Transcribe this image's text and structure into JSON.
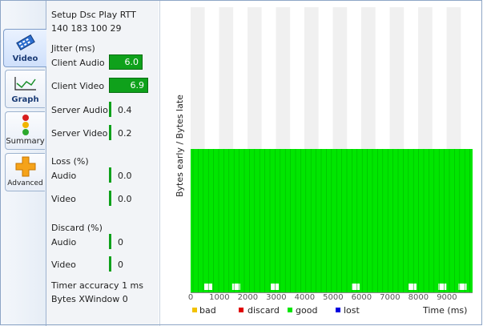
{
  "tabs": [
    {
      "label": "Video",
      "icon": "video-icon"
    },
    {
      "label": "Graph",
      "icon": "graph-icon"
    },
    {
      "label": "Summary",
      "icon": "traffic-light-icon"
    },
    {
      "label": "Advanced",
      "icon": "plus-icon"
    }
  ],
  "stats": {
    "header": "Setup Dsc Play RTT",
    "header_values": "140  183  100  29",
    "jitter": {
      "title": "Jitter (ms)",
      "client_audio_label": "Client Audio",
      "client_audio_value": "6.0",
      "client_video_label": "Client Video",
      "client_video_value": "6.9",
      "server_audio_label": "Server Audio",
      "server_audio_value": "0.4",
      "server_video_label": "Server Video",
      "server_video_value": "0.2"
    },
    "loss": {
      "title": "Loss (%)",
      "audio_label": "Audio",
      "audio_value": "0.0",
      "video_label": "Video",
      "video_value": "0.0"
    },
    "discard": {
      "title": "Discard (%)",
      "audio_label": "Audio",
      "audio_value": "0",
      "video_label": "Video",
      "video_value": "0"
    },
    "timer_accuracy": "Timer accuracy 1 ms",
    "bytes_xwindow": "Bytes XWindow 0"
  },
  "colors": {
    "good": "#00e600",
    "bad": "#f2c200",
    "discard": "#e00000",
    "lost": "#0000e0",
    "jitter_bar": "#0fa11b"
  },
  "chart_data": {
    "type": "bar",
    "ylabel": "Bytes early / Bytes late",
    "xlabel": "Time (ms)",
    "xlim": [
      0,
      9800
    ],
    "x_ticks": [
      "0",
      "1000",
      "2000",
      "3000",
      "4000",
      "5000",
      "6000",
      "7000",
      "8000",
      "9000"
    ],
    "x_tick_values": [
      0,
      1000,
      2000,
      3000,
      4000,
      5000,
      6000,
      7000,
      8000,
      9000
    ],
    "grid": true,
    "legend": [
      {
        "name": "bad",
        "color": "#f2c200"
      },
      {
        "name": "discard",
        "color": "#e00000"
      },
      {
        "name": "good",
        "color": "#00e600"
      },
      {
        "name": "lost",
        "color": "#0000e0"
      }
    ],
    "series": [
      {
        "name": "good",
        "gap_times_ms": [
          620,
          1600,
          2960,
          5800,
          7800,
          8850,
          9560
        ]
      }
    ]
  }
}
